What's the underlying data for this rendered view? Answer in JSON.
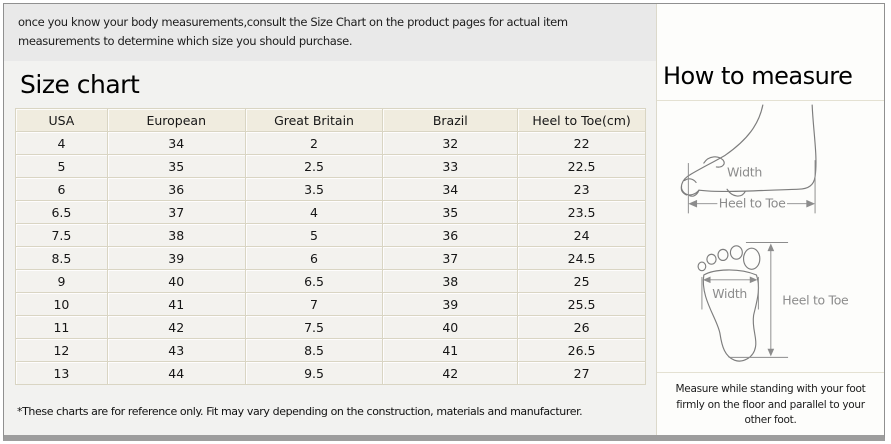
{
  "intro": {
    "text": "once you know your body measurements,consult the Size Chart on the product pages for actual item measurements to determine which size you should purchase."
  },
  "size_chart": {
    "title": "Size chart",
    "columns": [
      "USA",
      "European",
      "Great Britain",
      "Brazil",
      "Heel to Toe(cm)"
    ],
    "rows": [
      [
        "4",
        "34",
        "2",
        "32",
        "22"
      ],
      [
        "5",
        "35",
        "2.5",
        "33",
        "22.5"
      ],
      [
        "6",
        "36",
        "3.5",
        "34",
        "23"
      ],
      [
        "6.5",
        "37",
        "4",
        "35",
        "23.5"
      ],
      [
        "7.5",
        "38",
        "5",
        "36",
        "24"
      ],
      [
        "8.5",
        "39",
        "6",
        "37",
        "24.5"
      ],
      [
        "9",
        "40",
        "6.5",
        "38",
        "25"
      ],
      [
        "10",
        "41",
        "7",
        "39",
        "25.5"
      ],
      [
        "11",
        "42",
        "7.5",
        "40",
        "26"
      ],
      [
        "12",
        "43",
        "8.5",
        "41",
        "26.5"
      ],
      [
        "13",
        "44",
        "9.5",
        "42",
        "27"
      ]
    ],
    "footnote": "*These charts are for reference only. Fit may vary depending on the construction, materials and manufacturer."
  },
  "how_to_measure": {
    "title": "How to measure",
    "side_view": {
      "width_label": "Width",
      "heel_to_toe_label": "Heel to Toe"
    },
    "top_view": {
      "width_label": "Width",
      "heel_to_toe_label": "Heel to Toe"
    },
    "instruction": "Measure while standing with your foot firmly on the floor and parallel to your other foot."
  },
  "colors": {
    "table_border": "#d9d5c3",
    "table_header_bg": "#f0ecdf",
    "table_row_bg": "#f3f2ee",
    "top_strip_bg": "#e9e9e9",
    "left_panel_bg": "#f2f2f0",
    "diagram_stroke": "#8c8c8c",
    "outer_border": "#909090"
  }
}
